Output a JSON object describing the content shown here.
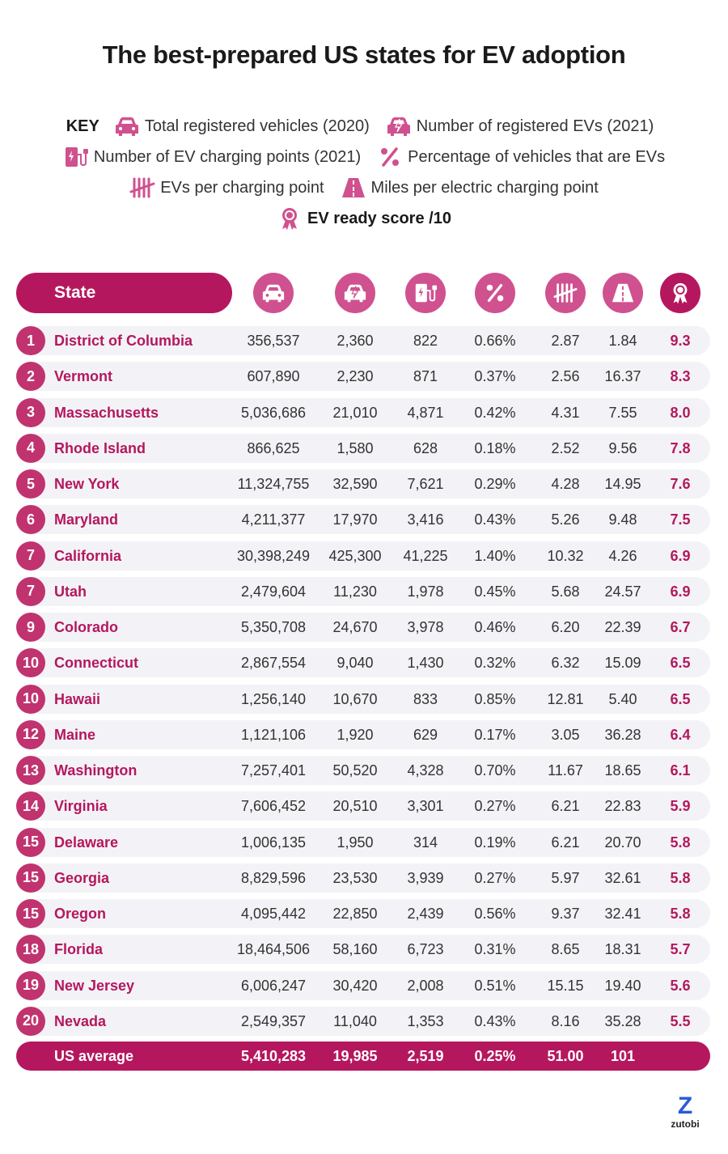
{
  "title": "The best-prepared US states for EV adoption",
  "key": {
    "label": "KEY",
    "total_vehicles": "Total registered vehicles (2020)",
    "registered_evs": "Number of registered EVs (2021)",
    "charging_points": "Number of EV charging points (2021)",
    "pct_evs": "Percentage of vehicles that are EVs",
    "evs_per_point": "EVs per charging point",
    "miles_per_point": "Miles per electric charging point",
    "score": "EV ready score /10"
  },
  "header": {
    "state_label": "State"
  },
  "colors": {
    "primary": "#b5175e",
    "accent": "#d0518f",
    "row_bg": "#f3f3f7"
  },
  "chart_data": {
    "type": "table",
    "title": "The best-prepared US states for EV adoption",
    "columns": [
      "Rank",
      "State",
      "Total registered vehicles (2020)",
      "Number of registered EVs (2021)",
      "Number of EV charging points (2021)",
      "Percentage of vehicles that are EVs",
      "EVs per charging point",
      "Miles per electric charging point",
      "EV ready score /10"
    ],
    "rows": [
      {
        "rank": "1",
        "state": "District of Columbia",
        "vehicles": "356,537",
        "evs": "2,360",
        "points": "822",
        "pct": "0.66%",
        "evs_per_point": "2.87",
        "miles_per_point": "1.84",
        "score": "9.3"
      },
      {
        "rank": "2",
        "state": "Vermont",
        "vehicles": "607,890",
        "evs": "2,230",
        "points": "871",
        "pct": "0.37%",
        "evs_per_point": "2.56",
        "miles_per_point": "16.37",
        "score": "8.3"
      },
      {
        "rank": "3",
        "state": "Massachusetts",
        "vehicles": "5,036,686",
        "evs": "21,010",
        "points": "4,871",
        "pct": "0.42%",
        "evs_per_point": "4.31",
        "miles_per_point": "7.55",
        "score": "8.0"
      },
      {
        "rank": "4",
        "state": "Rhode Island",
        "vehicles": "866,625",
        "evs": "1,580",
        "points": "628",
        "pct": "0.18%",
        "evs_per_point": "2.52",
        "miles_per_point": "9.56",
        "score": "7.8"
      },
      {
        "rank": "5",
        "state": "New York",
        "vehicles": "11,324,755",
        "evs": "32,590",
        "points": "7,621",
        "pct": "0.29%",
        "evs_per_point": "4.28",
        "miles_per_point": "14.95",
        "score": "7.6"
      },
      {
        "rank": "6",
        "state": "Maryland",
        "vehicles": "4,211,377",
        "evs": "17,970",
        "points": "3,416",
        "pct": "0.43%",
        "evs_per_point": "5.26",
        "miles_per_point": "9.48",
        "score": "7.5"
      },
      {
        "rank": "7",
        "state": "California",
        "vehicles": "30,398,249",
        "evs": "425,300",
        "points": "41,225",
        "pct": "1.40%",
        "evs_per_point": "10.32",
        "miles_per_point": "4.26",
        "score": "6.9"
      },
      {
        "rank": "7",
        "state": "Utah",
        "vehicles": "2,479,604",
        "evs": "11,230",
        "points": "1,978",
        "pct": "0.45%",
        "evs_per_point": "5.68",
        "miles_per_point": "24.57",
        "score": "6.9"
      },
      {
        "rank": "9",
        "state": "Colorado",
        "vehicles": "5,350,708",
        "evs": "24,670",
        "points": "3,978",
        "pct": "0.46%",
        "evs_per_point": "6.20",
        "miles_per_point": "22.39",
        "score": "6.7"
      },
      {
        "rank": "10",
        "state": "Connecticut",
        "vehicles": "2,867,554",
        "evs": "9,040",
        "points": "1,430",
        "pct": "0.32%",
        "evs_per_point": "6.32",
        "miles_per_point": "15.09",
        "score": "6.5"
      },
      {
        "rank": "10",
        "state": "Hawaii",
        "vehicles": "1,256,140",
        "evs": "10,670",
        "points": "833",
        "pct": "0.85%",
        "evs_per_point": "12.81",
        "miles_per_point": "5.40",
        "score": "6.5"
      },
      {
        "rank": "12",
        "state": "Maine",
        "vehicles": "1,121,106",
        "evs": "1,920",
        "points": "629",
        "pct": "0.17%",
        "evs_per_point": "3.05",
        "miles_per_point": "36.28",
        "score": "6.4"
      },
      {
        "rank": "13",
        "state": "Washington",
        "vehicles": "7,257,401",
        "evs": "50,520",
        "points": "4,328",
        "pct": "0.70%",
        "evs_per_point": "11.67",
        "miles_per_point": "18.65",
        "score": "6.1"
      },
      {
        "rank": "14",
        "state": "Virginia",
        "vehicles": "7,606,452",
        "evs": "20,510",
        "points": "3,301",
        "pct": "0.27%",
        "evs_per_point": "6.21",
        "miles_per_point": "22.83",
        "score": "5.9"
      },
      {
        "rank": "15",
        "state": "Delaware",
        "vehicles": "1,006,135",
        "evs": "1,950",
        "points": "314",
        "pct": "0.19%",
        "evs_per_point": "6.21",
        "miles_per_point": "20.70",
        "score": "5.8"
      },
      {
        "rank": "15",
        "state": "Georgia",
        "vehicles": "8,829,596",
        "evs": "23,530",
        "points": "3,939",
        "pct": "0.27%",
        "evs_per_point": "5.97",
        "miles_per_point": "32.61",
        "score": "5.8"
      },
      {
        "rank": "15",
        "state": "Oregon",
        "vehicles": "4,095,442",
        "evs": "22,850",
        "points": "2,439",
        "pct": "0.56%",
        "evs_per_point": "9.37",
        "miles_per_point": "32.41",
        "score": "5.8"
      },
      {
        "rank": "18",
        "state": "Florida",
        "vehicles": "18,464,506",
        "evs": "58,160",
        "points": "6,723",
        "pct": "0.31%",
        "evs_per_point": "8.65",
        "miles_per_point": "18.31",
        "score": "5.7"
      },
      {
        "rank": "19",
        "state": "New Jersey",
        "vehicles": "6,006,247",
        "evs": "30,420",
        "points": "2,008",
        "pct": "0.51%",
        "evs_per_point": "15.15",
        "miles_per_point": "19.40",
        "score": "5.6"
      },
      {
        "rank": "20",
        "state": "Nevada",
        "vehicles": "2,549,357",
        "evs": "11,040",
        "points": "1,353",
        "pct": "0.43%",
        "evs_per_point": "8.16",
        "miles_per_point": "35.28",
        "score": "5.5"
      }
    ],
    "average": {
      "state": "US average",
      "vehicles": "5,410,283",
      "evs": "19,985",
      "points": "2,519",
      "pct": "0.25%",
      "evs_per_point": "51.00",
      "miles_per_point": "101"
    }
  },
  "brand": {
    "logo_letter": "Z",
    "name": "zutobi"
  }
}
